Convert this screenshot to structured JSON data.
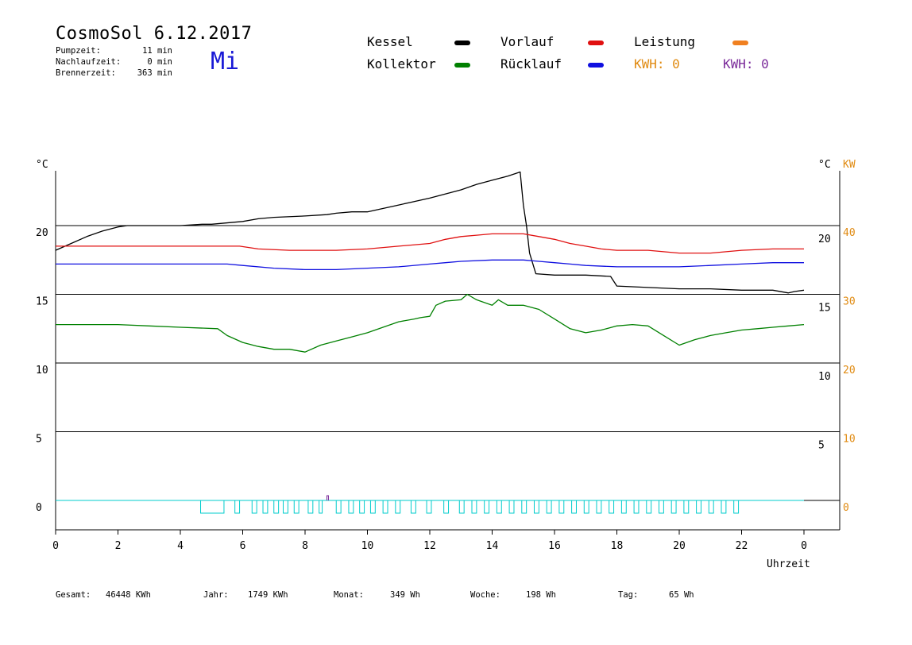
{
  "header": {
    "title": "CosmoSol 6.12.2017",
    "day": "Mi",
    "pumpzeit_label": "Pumpzeit:",
    "pumpzeit_value": "11 min",
    "nachlauf_label": "Nachlaufzeit:",
    "nachlauf_value": "0 min",
    "brenner_label": "Brennerzeit:",
    "brenner_value": "363 min"
  },
  "legend": {
    "kessel": "Kessel",
    "vorlauf": "Vorlauf",
    "leistung": "Leistung",
    "kollektor": "Kollektor",
    "ruecklauf": "Rücklauf",
    "kwh1": "KWH: 0",
    "kwh2": "KWH: 0",
    "colors": {
      "kessel": "#000000",
      "vorlauf": "#e01010",
      "leistung": "#f08020",
      "kollektor": "#008000",
      "ruecklauf": "#1010e0",
      "kwh1": "#e08a10",
      "kwh2": "#7a2a9a",
      "pump": "#00cccc"
    }
  },
  "footer": {
    "gesamt_label": "Gesamt:",
    "gesamt_value": "46448 KWh",
    "jahr_label": "Jahr:",
    "jahr_value": "1749 KWh",
    "monat_label": "Monat:",
    "monat_value": "349 Wh",
    "woche_label": "Woche:",
    "woche_value": "198 Wh",
    "tag_label": "Tag:",
    "tag_value": "65 Wh"
  },
  "chart_data": {
    "type": "line",
    "xlabel": "Uhrzeit",
    "x_ticks": [
      "0",
      "2",
      "4",
      "6",
      "8",
      "10",
      "12",
      "14",
      "16",
      "18",
      "20",
      "22",
      "0"
    ],
    "xlim": [
      0,
      24
    ],
    "y_left_unit": "°C",
    "y_left_ticks": [
      "0",
      "5",
      "10",
      "15",
      "20"
    ],
    "y_right_unit": "°C",
    "y_right_ticks": [
      "5",
      "10",
      "15",
      "20"
    ],
    "y_kw_unit": "KW",
    "y_kw_ticks": [
      "0",
      "10",
      "20",
      "30",
      "40"
    ],
    "ylim": [
      -2,
      24.5
    ],
    "gridlines_y": [
      0,
      5,
      10,
      15,
      20
    ],
    "series": [
      {
        "name": "Kessel",
        "color": "#000000",
        "x": [
          0,
          0.5,
          1,
          1.5,
          2,
          2.3,
          3,
          4,
          4.7,
          5,
          6,
          6.5,
          7,
          8,
          8.7,
          9,
          9.5,
          10,
          11,
          12,
          13,
          13.5,
          14,
          14.5,
          14.9,
          15.0,
          15.1,
          15.2,
          15.4,
          16,
          17,
          17.8,
          18,
          19,
          20,
          21,
          22,
          23,
          23.5,
          23.7,
          24
        ],
        "y": [
          18.2,
          18.7,
          19.2,
          19.6,
          19.9,
          20,
          20,
          20,
          20.1,
          20.1,
          20.3,
          20.5,
          20.6,
          20.7,
          20.8,
          20.9,
          21,
          21,
          21.5,
          22,
          22.6,
          23,
          23.3,
          23.6,
          23.9,
          21.5,
          20,
          18,
          16.5,
          16.4,
          16.4,
          16.3,
          15.6,
          15.5,
          15.4,
          15.4,
          15.3,
          15.3,
          15.1,
          15.2,
          15.3
        ]
      },
      {
        "name": "Vorlauf",
        "color": "#e01010",
        "x": [
          0,
          2,
          4,
          5.9,
          6.5,
          7.5,
          9,
          10,
          11,
          12,
          12.5,
          13,
          13.5,
          14,
          14.5,
          15,
          15.5,
          16,
          16.5,
          17,
          17.5,
          18,
          19,
          20,
          21,
          22,
          23,
          24
        ],
        "y": [
          18.5,
          18.5,
          18.5,
          18.5,
          18.3,
          18.2,
          18.2,
          18.3,
          18.5,
          18.7,
          19,
          19.2,
          19.3,
          19.4,
          19.4,
          19.4,
          19.2,
          19,
          18.7,
          18.5,
          18.3,
          18.2,
          18.2,
          18,
          18,
          18.2,
          18.3,
          18.3
        ]
      },
      {
        "name": "Rücklauf",
        "color": "#1010e0",
        "x": [
          0,
          2,
          4,
          5.5,
          6,
          7,
          8,
          9,
          10,
          11,
          12,
          12.5,
          13,
          14,
          15,
          15.5,
          16,
          16.5,
          17,
          18,
          19,
          20,
          21,
          22,
          23,
          24
        ],
        "y": [
          17.2,
          17.2,
          17.2,
          17.2,
          17.1,
          16.9,
          16.8,
          16.8,
          16.9,
          17,
          17.2,
          17.3,
          17.4,
          17.5,
          17.5,
          17.4,
          17.3,
          17.2,
          17.1,
          17,
          17,
          17,
          17.1,
          17.2,
          17.3,
          17.3
        ]
      },
      {
        "name": "Kollektor",
        "color": "#008000",
        "x": [
          0,
          1,
          2,
          3,
          4,
          5.2,
          5.5,
          6,
          6.5,
          7,
          7.5,
          8,
          8.5,
          9,
          9.5,
          10,
          10.5,
          11,
          11.5,
          11.7,
          12,
          12.2,
          12.5,
          13,
          13.2,
          13.5,
          14,
          14.2,
          14.5,
          15,
          15.5,
          16,
          16.5,
          17,
          17.5,
          18,
          18.5,
          19,
          19.5,
          20,
          20.5,
          21,
          21.5,
          22,
          22.5,
          23,
          23.5,
          24
        ],
        "y": [
          12.8,
          12.8,
          12.8,
          12.7,
          12.6,
          12.5,
          12,
          11.5,
          11.2,
          11,
          11,
          10.8,
          11.3,
          11.6,
          11.9,
          12.2,
          12.6,
          13,
          13.2,
          13.3,
          13.4,
          14.2,
          14.5,
          14.6,
          15,
          14.6,
          14.2,
          14.6,
          14.2,
          14.2,
          13.9,
          13.2,
          12.5,
          12.2,
          12.4,
          12.7,
          12.8,
          12.7,
          12,
          11.3,
          11.7,
          12,
          12.2,
          12.4,
          12.5,
          12.6,
          12.7,
          12.8
        ]
      }
    ],
    "pump_segments": [
      [
        4.65,
        5.4
      ],
      [
        5.75,
        5.9
      ],
      [
        6.3,
        6.45
      ],
      [
        6.65,
        6.8
      ],
      [
        7.0,
        7.15
      ],
      [
        7.3,
        7.45
      ],
      [
        7.65,
        7.8
      ],
      [
        8.1,
        8.25
      ],
      [
        8.45,
        8.55
      ],
      [
        9.0,
        9.15
      ],
      [
        9.4,
        9.55
      ],
      [
        9.75,
        9.9
      ],
      [
        10.1,
        10.25
      ],
      [
        10.5,
        10.65
      ],
      [
        10.9,
        11.05
      ],
      [
        11.4,
        11.55
      ],
      [
        11.9,
        12.05
      ],
      [
        12.45,
        12.6
      ],
      [
        12.95,
        13.1
      ],
      [
        13.35,
        13.5
      ],
      [
        13.75,
        13.9
      ],
      [
        14.15,
        14.3
      ],
      [
        14.55,
        14.7
      ],
      [
        14.95,
        15.1
      ],
      [
        15.35,
        15.5
      ],
      [
        15.75,
        15.9
      ],
      [
        16.15,
        16.3
      ],
      [
        16.55,
        16.7
      ],
      [
        16.95,
        17.1
      ],
      [
        17.35,
        17.5
      ],
      [
        17.75,
        17.9
      ],
      [
        18.15,
        18.3
      ],
      [
        18.55,
        18.7
      ],
      [
        18.95,
        19.1
      ],
      [
        19.35,
        19.5
      ],
      [
        19.75,
        19.9
      ],
      [
        20.15,
        20.3
      ],
      [
        20.55,
        20.7
      ],
      [
        20.95,
        21.1
      ],
      [
        21.35,
        21.5
      ],
      [
        21.75,
        21.9
      ]
    ]
  }
}
